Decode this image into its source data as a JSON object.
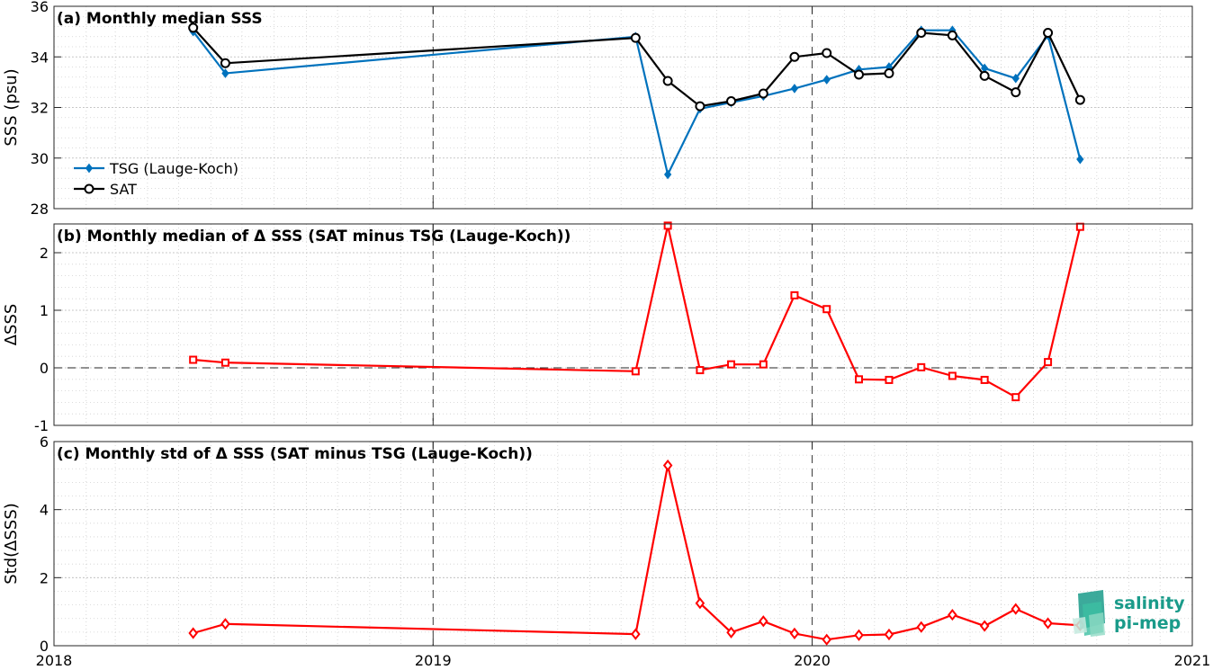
{
  "chart_data": [
    {
      "type": "line",
      "title": "(a) Monthly median SSS",
      "xlabel": "",
      "ylabel": "SSS (psu)",
      "xlim": [
        "2018-01-01",
        "2021-01-01"
      ],
      "ylim": [
        28,
        36
      ],
      "yticks": [
        "28",
        "30",
        "32",
        "34",
        "36"
      ],
      "grid": true,
      "legend_position": "bottom-left",
      "x": [
        "2018-05-15",
        "2018-06-15",
        "2019-07-15",
        "2019-08-15",
        "2019-09-15",
        "2019-10-15",
        "2019-11-15",
        "2019-12-15",
        "2020-01-15",
        "2020-02-15",
        "2020-03-15",
        "2020-04-15",
        "2020-05-15",
        "2020-06-15",
        "2020-07-15",
        "2020-08-15",
        "2020-09-15"
      ],
      "series": [
        {
          "name": "TSG (Lauge-Koch)",
          "color": "#0072BD",
          "marker": "diamond",
          "values": [
            35.0,
            33.35,
            34.8,
            29.35,
            31.95,
            32.2,
            32.45,
            32.75,
            33.1,
            33.5,
            33.6,
            35.05,
            35.05,
            33.55,
            33.15,
            34.85,
            29.95
          ]
        },
        {
          "name": "SAT",
          "color": "#000000",
          "marker": "circle",
          "values": [
            35.15,
            33.75,
            34.75,
            33.05,
            32.05,
            32.25,
            32.55,
            34.0,
            34.15,
            33.3,
            33.35,
            34.95,
            34.85,
            33.25,
            32.6,
            34.95,
            32.3
          ]
        }
      ]
    },
    {
      "type": "line",
      "title": "(b) Monthly median of Δ SSS (SAT minus TSG (Lauge-Koch))",
      "xlabel": "",
      "ylabel": "ΔSSS",
      "xlim": [
        "2018-01-01",
        "2021-01-01"
      ],
      "ylim": [
        -1,
        2.5
      ],
      "yticks": [
        "-1",
        "0",
        "1",
        "2"
      ],
      "zero_line": true,
      "grid": true,
      "x": [
        "2018-05-15",
        "2018-06-15",
        "2019-07-15",
        "2019-08-15",
        "2019-09-15",
        "2019-10-15",
        "2019-11-15",
        "2019-12-15",
        "2020-01-15",
        "2020-02-15",
        "2020-03-15",
        "2020-04-15",
        "2020-05-15",
        "2020-06-15",
        "2020-07-15",
        "2020-08-15",
        "2020-09-15"
      ],
      "series": [
        {
          "color": "#FF0000",
          "marker": "square",
          "values": [
            0.14,
            0.09,
            -0.06,
            2.47,
            -0.04,
            0.06,
            0.06,
            1.26,
            1.02,
            -0.2,
            -0.21,
            0.01,
            -0.14,
            -0.21,
            -0.51,
            0.1,
            2.45
          ]
        }
      ]
    },
    {
      "type": "line",
      "title": "(c) Monthly std of Δ SSS (SAT minus TSG (Lauge-Koch))",
      "xlabel": "",
      "ylabel": "Std(ΔSSS)",
      "xlim": [
        "2018-01-01",
        "2021-01-01"
      ],
      "ylim": [
        0,
        6
      ],
      "yticks": [
        "0",
        "2",
        "4",
        "6"
      ],
      "xticks": [
        "2018",
        "2019",
        "2020",
        "2021"
      ],
      "grid": true,
      "x": [
        "2018-05-15",
        "2018-06-15",
        "2019-07-15",
        "2019-08-15",
        "2019-09-15",
        "2019-10-15",
        "2019-11-15",
        "2019-12-15",
        "2020-01-15",
        "2020-02-15",
        "2020-03-15",
        "2020-04-15",
        "2020-05-15",
        "2020-06-15",
        "2020-07-15",
        "2020-08-15",
        "2020-09-15"
      ],
      "series": [
        {
          "color": "#FF0000",
          "marker": "diamond",
          "values": [
            0.37,
            0.64,
            0.34,
            5.3,
            1.25,
            0.39,
            0.72,
            0.36,
            0.18,
            0.31,
            0.33,
            0.55,
            0.91,
            0.58,
            1.08,
            0.66,
            0.6
          ]
        }
      ]
    }
  ],
  "logo": {
    "line1": "salinity",
    "line2": "pi-mep",
    "color": "#1a9b8a"
  }
}
